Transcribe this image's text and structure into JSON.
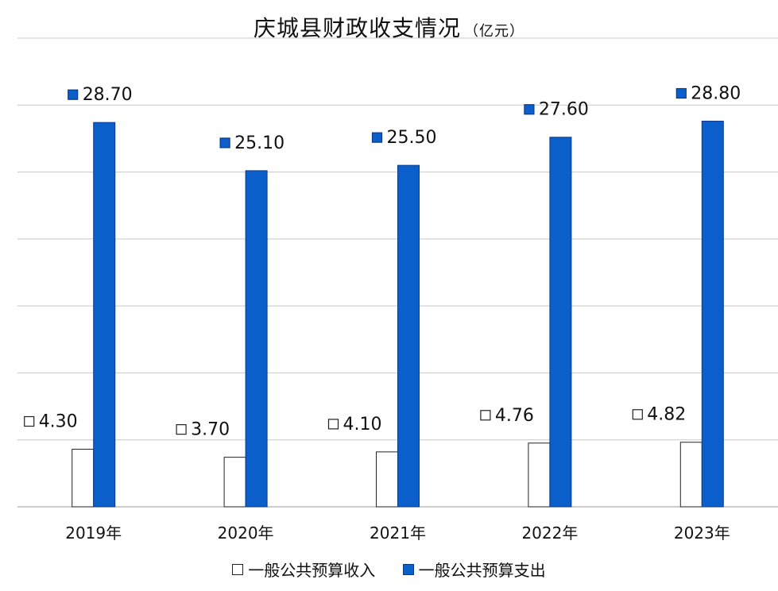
{
  "chart_data": {
    "type": "bar",
    "title": "庆城县财政收支情况",
    "unit": "（亿元）",
    "categories": [
      "2019年",
      "2020年",
      "2021年",
      "2022年",
      "2023年"
    ],
    "series": [
      {
        "name": "一般公共预算收入",
        "values": [
          4.3,
          3.7,
          4.1,
          4.76,
          4.82
        ],
        "labels": [
          "4.30",
          "3.70",
          "4.10",
          "4.76",
          "4.82"
        ],
        "color": "#ffffff",
        "stroke": "#222222"
      },
      {
        "name": "一般公共预算支出",
        "values": [
          28.7,
          25.1,
          25.5,
          27.6,
          28.8
        ],
        "labels": [
          "28.70",
          "25.10",
          "25.50",
          "27.60",
          "28.80"
        ],
        "color": "#0b5fcb",
        "stroke": "#0a3a8a"
      }
    ],
    "ylim": [
      0,
      35
    ],
    "grid": true,
    "legend": "bottom-center",
    "xlabel": "",
    "ylabel": ""
  }
}
